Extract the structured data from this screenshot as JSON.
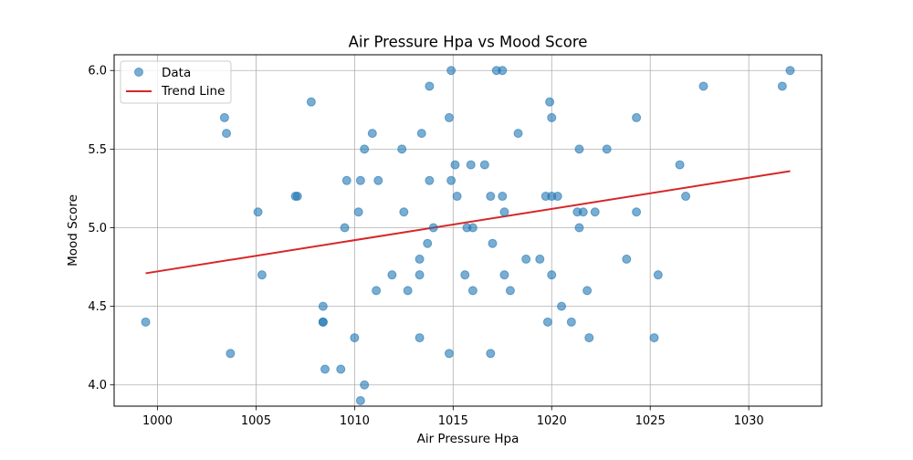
{
  "chart_data": {
    "type": "scatter",
    "title": "Air Pressure Hpa vs Mood Score",
    "xlabel": "Air Pressure Hpa",
    "ylabel": "Mood Score",
    "xlim": [
      997.8,
      1033.7
    ],
    "ylim": [
      3.865,
      6.1
    ],
    "x_ticks": [
      1000,
      1005,
      1010,
      1015,
      1020,
      1025,
      1030
    ],
    "x_tick_labels": [
      "1000",
      "1005",
      "1010",
      "1015",
      "1020",
      "1025",
      "1030"
    ],
    "y_ticks": [
      4.0,
      4.5,
      5.0,
      5.5,
      6.0
    ],
    "y_tick_labels": [
      "4.0",
      "4.5",
      "5.0",
      "5.5",
      "6.0"
    ],
    "grid": true,
    "legend": {
      "position": "top-left",
      "entries": [
        "Data",
        "Trend Line"
      ]
    },
    "series": [
      {
        "name": "Data",
        "kind": "scatter",
        "color": "#1f77b4",
        "points": [
          [
            999.4,
            4.4
          ],
          [
            1003.4,
            5.7
          ],
          [
            1003.5,
            5.6
          ],
          [
            1003.7,
            4.2
          ],
          [
            1005.1,
            5.1
          ],
          [
            1005.3,
            4.7
          ],
          [
            1007.0,
            5.2
          ],
          [
            1007.1,
            5.2
          ],
          [
            1007.8,
            5.8
          ],
          [
            1008.4,
            4.5
          ],
          [
            1008.4,
            4.4
          ],
          [
            1008.4,
            4.4
          ],
          [
            1008.5,
            4.1
          ],
          [
            1009.3,
            4.1
          ],
          [
            1009.5,
            5.0
          ],
          [
            1009.6,
            5.3
          ],
          [
            1010.0,
            4.3
          ],
          [
            1010.2,
            5.1
          ],
          [
            1010.3,
            5.3
          ],
          [
            1010.3,
            3.9
          ],
          [
            1010.5,
            5.5
          ],
          [
            1010.5,
            4.0
          ],
          [
            1010.9,
            5.6
          ],
          [
            1011.1,
            4.6
          ],
          [
            1011.2,
            5.3
          ],
          [
            1011.9,
            4.7
          ],
          [
            1012.4,
            5.5
          ],
          [
            1012.5,
            5.1
          ],
          [
            1012.7,
            4.6
          ],
          [
            1013.3,
            4.8
          ],
          [
            1013.3,
            4.7
          ],
          [
            1013.3,
            4.3
          ],
          [
            1013.4,
            5.6
          ],
          [
            1013.7,
            4.9
          ],
          [
            1013.8,
            5.9
          ],
          [
            1013.8,
            5.3
          ],
          [
            1014.0,
            5.0
          ],
          [
            1014.8,
            5.7
          ],
          [
            1014.8,
            4.2
          ],
          [
            1014.9,
            6.0
          ],
          [
            1014.9,
            5.3
          ],
          [
            1015.1,
            5.4
          ],
          [
            1015.2,
            5.2
          ],
          [
            1015.6,
            4.7
          ],
          [
            1015.7,
            5.0
          ],
          [
            1015.9,
            5.4
          ],
          [
            1016.0,
            5.0
          ],
          [
            1016.0,
            4.6
          ],
          [
            1016.6,
            5.4
          ],
          [
            1016.9,
            5.2
          ],
          [
            1016.9,
            4.2
          ],
          [
            1017.0,
            4.9
          ],
          [
            1017.2,
            6.0
          ],
          [
            1017.5,
            6.0
          ],
          [
            1017.5,
            5.2
          ],
          [
            1017.6,
            5.1
          ],
          [
            1017.6,
            4.7
          ],
          [
            1017.9,
            4.6
          ],
          [
            1018.3,
            5.6
          ],
          [
            1018.7,
            4.8
          ],
          [
            1019.4,
            4.8
          ],
          [
            1019.7,
            5.2
          ],
          [
            1019.8,
            4.4
          ],
          [
            1019.9,
            5.8
          ],
          [
            1020.0,
            5.7
          ],
          [
            1020.0,
            5.2
          ],
          [
            1020.0,
            4.7
          ],
          [
            1020.3,
            5.2
          ],
          [
            1020.5,
            4.5
          ],
          [
            1021.0,
            4.4
          ],
          [
            1021.3,
            5.1
          ],
          [
            1021.4,
            5.5
          ],
          [
            1021.4,
            5.0
          ],
          [
            1021.6,
            5.1
          ],
          [
            1021.8,
            4.6
          ],
          [
            1021.9,
            4.3
          ],
          [
            1022.2,
            5.1
          ],
          [
            1022.8,
            5.5
          ],
          [
            1023.8,
            4.8
          ],
          [
            1024.3,
            5.7
          ],
          [
            1024.3,
            5.1
          ],
          [
            1025.2,
            4.3
          ],
          [
            1025.4,
            4.7
          ],
          [
            1026.5,
            5.4
          ],
          [
            1026.8,
            5.2
          ],
          [
            1027.7,
            5.9
          ],
          [
            1031.7,
            5.9
          ],
          [
            1032.1,
            6.0
          ]
        ]
      },
      {
        "name": "Trend Line",
        "kind": "line",
        "color": "#d62728",
        "points": [
          [
            999.4,
            4.71
          ],
          [
            1032.1,
            5.36
          ]
        ]
      }
    ]
  }
}
